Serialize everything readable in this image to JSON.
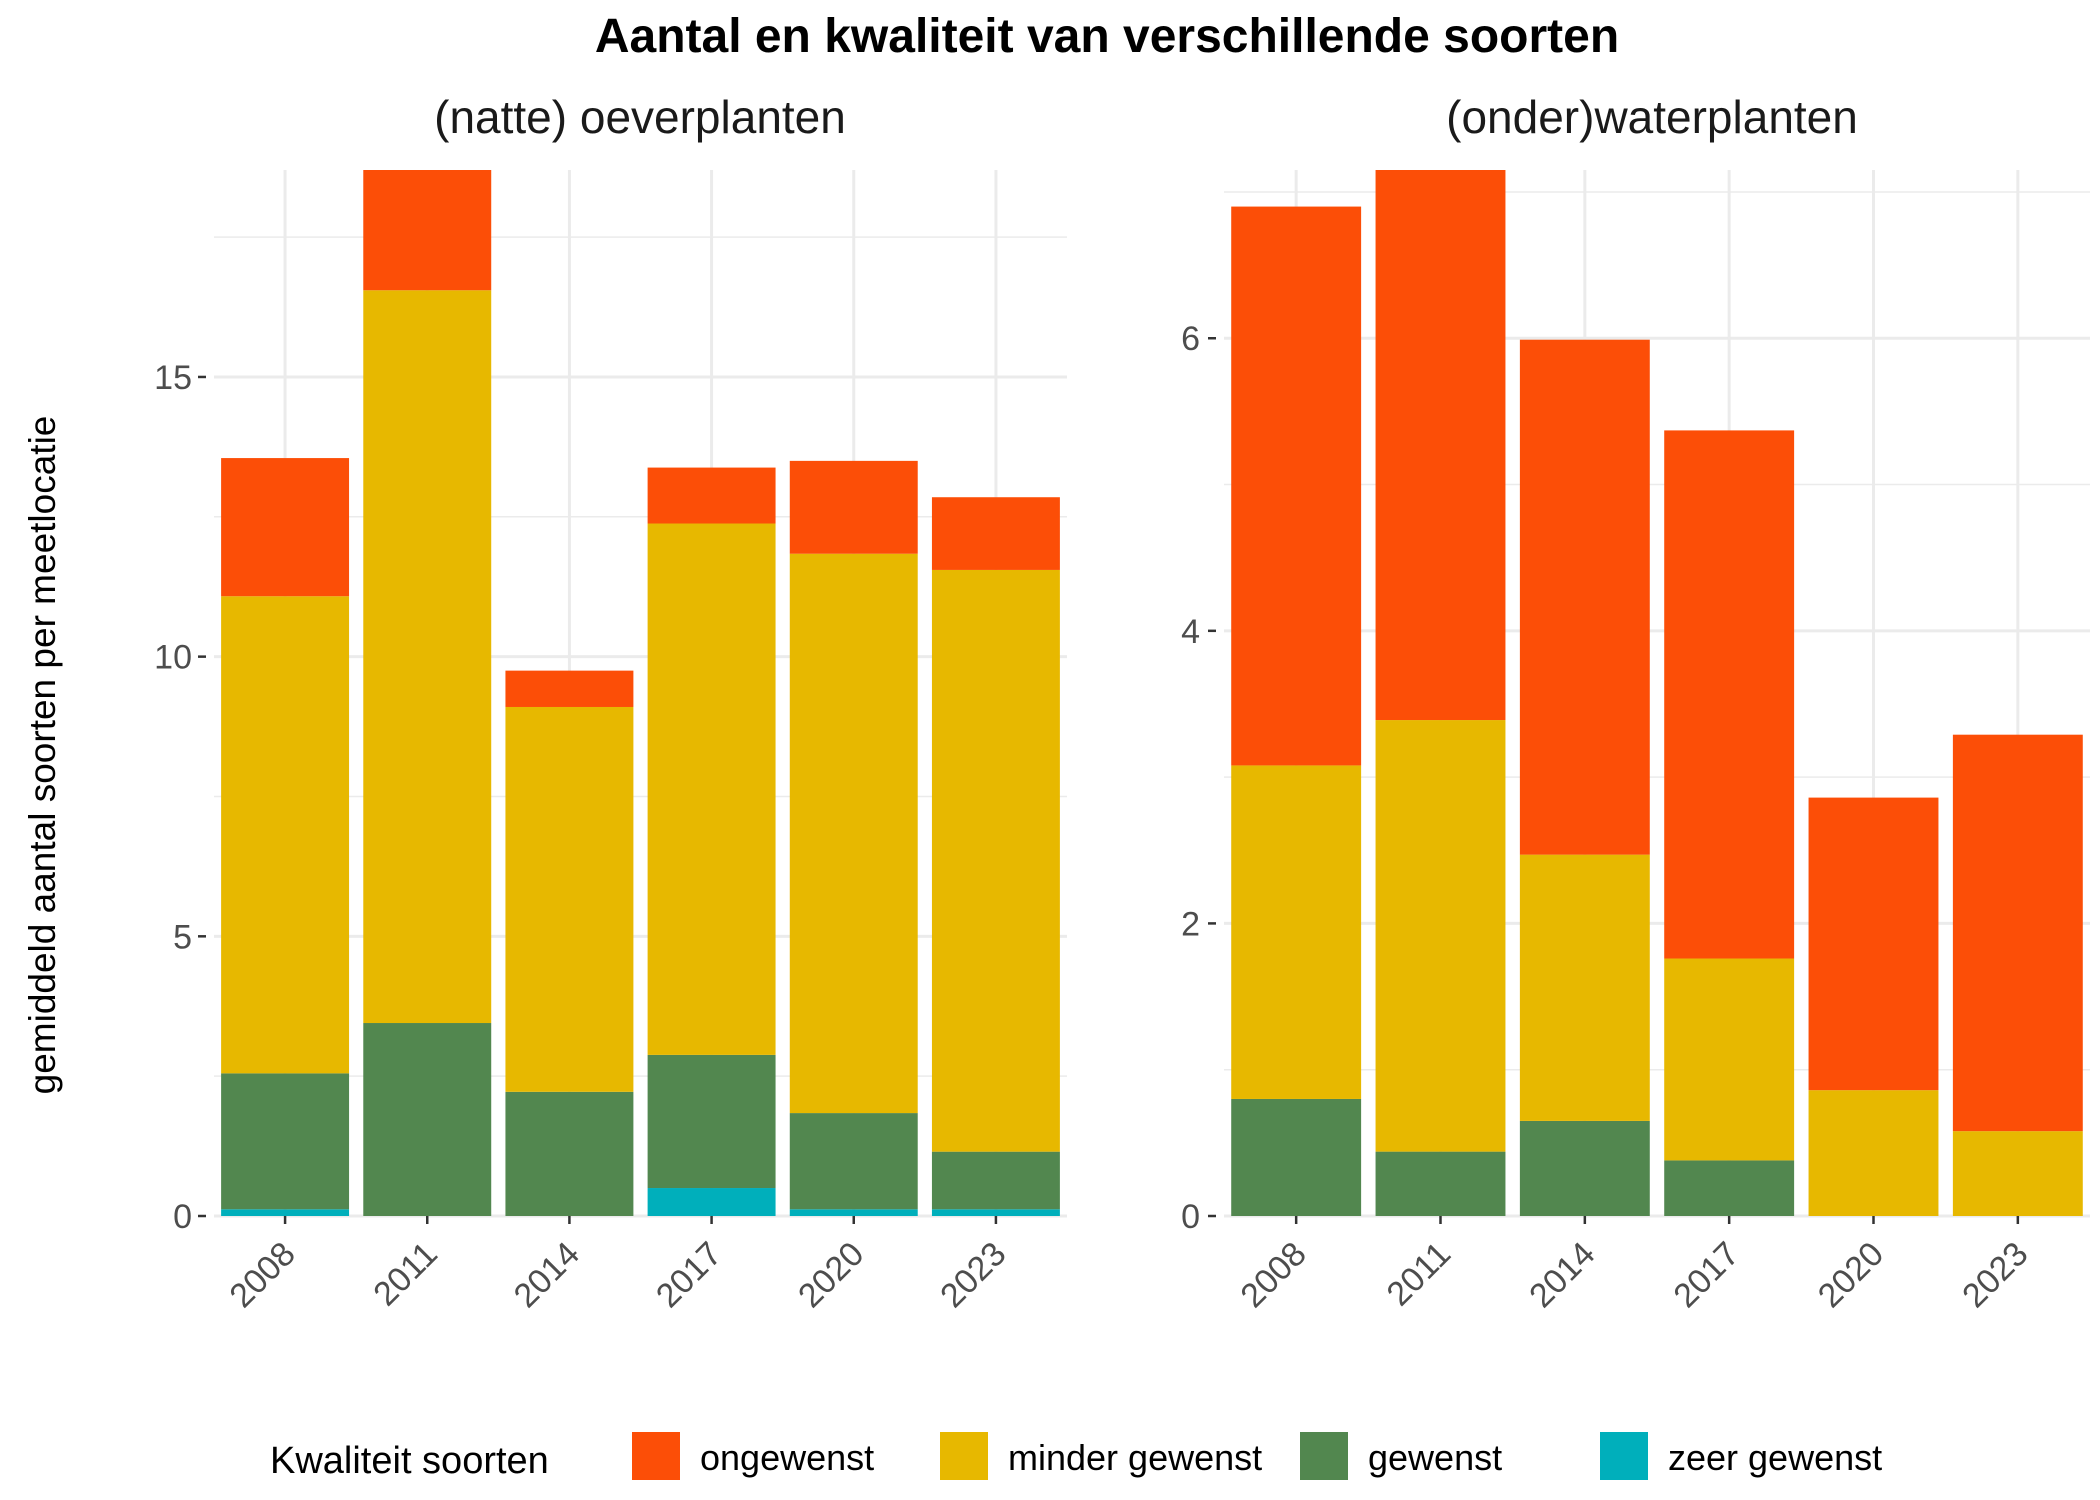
{
  "title": "Aantal en kwaliteit van verschillende soorten",
  "ylabel": "gemiddeld aantal soorten per meetlocatie",
  "legend": {
    "title": "Kwaliteit soorten",
    "items": [
      {
        "label": "ongewenst",
        "color": "#FC4E07"
      },
      {
        "label": "minder gewenst",
        "color": "#E7B800"
      },
      {
        "label": "gewenst",
        "color": "#52874F"
      },
      {
        "label": "zeer gewenst",
        "color": "#00AFBB"
      }
    ]
  },
  "chart_data": [
    {
      "type": "bar",
      "stacked": true,
      "title": "(natte) oeverplanten",
      "categories": [
        "2008",
        "2011",
        "2014",
        "2017",
        "2020",
        "2023"
      ],
      "ylim": [
        0,
        18.7
      ],
      "yticks": [
        0,
        5,
        10,
        15
      ],
      "series": [
        {
          "name": "zeer gewenst",
          "color": "#00AFBB",
          "values": [
            0.12,
            0.0,
            0.0,
            0.5,
            0.12,
            0.12
          ]
        },
        {
          "name": "gewenst",
          "color": "#52874F",
          "values": [
            2.43,
            3.45,
            2.22,
            2.38,
            1.72,
            1.03
          ]
        },
        {
          "name": "minder gewenst",
          "color": "#E7B800",
          "values": [
            8.53,
            13.1,
            6.88,
            9.5,
            10.0,
            10.4
          ]
        },
        {
          "name": "ongewenst",
          "color": "#FC4E07",
          "values": [
            2.47,
            2.15,
            0.65,
            1.0,
            1.66,
            1.3
          ]
        }
      ]
    },
    {
      "type": "bar",
      "stacked": true,
      "title": "(onder)waterplanten",
      "categories": [
        "2008",
        "2011",
        "2014",
        "2017",
        "2020",
        "2023"
      ],
      "ylim": [
        0,
        7.15
      ],
      "yticks": [
        0,
        2,
        4,
        6
      ],
      "series": [
        {
          "name": "zeer gewenst",
          "color": "#00AFBB",
          "values": [
            0,
            0,
            0,
            0,
            0,
            0
          ]
        },
        {
          "name": "gewenst",
          "color": "#52874F",
          "values": [
            0.8,
            0.44,
            0.65,
            0.38,
            0.0,
            0.0
          ]
        },
        {
          "name": "minder gewenst",
          "color": "#E7B800",
          "values": [
            2.28,
            2.95,
            1.82,
            1.38,
            0.86,
            0.58
          ]
        },
        {
          "name": "ongewenst",
          "color": "#FC4E07",
          "values": [
            3.82,
            3.76,
            3.52,
            3.61,
            2.0,
            2.71
          ]
        }
      ]
    }
  ]
}
